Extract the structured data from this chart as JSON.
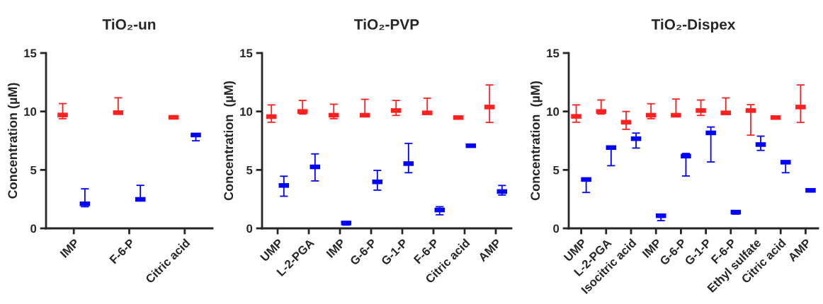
{
  "chart_data": [
    {
      "type": "scatter",
      "title": "TiO₂-un",
      "ylabel": "Concentration (µM)",
      "ylim": [
        0,
        15
      ],
      "yticks": [
        0,
        5,
        10,
        15
      ],
      "grid": false,
      "legend": false,
      "categories": [
        null,
        null,
        "IMP",
        null,
        null,
        null,
        null,
        "F-6-P",
        null,
        null,
        null,
        null,
        "Citric acid",
        null,
        null
      ],
      "series": [
        {
          "color": "#ff2020",
          "values": [
            null,
            9.7,
            null,
            null,
            null,
            null,
            9.9,
            null,
            null,
            null,
            null,
            9.5,
            null,
            null,
            null
          ],
          "errors": [
            null,
            [
              9.38,
              10.67
            ],
            null,
            null,
            null,
            null,
            [
              9.78,
              11.17
            ],
            null,
            null,
            null,
            null,
            [
              9.45,
              9.55
            ],
            null,
            null,
            null
          ]
        },
        {
          "color": "#0000ff",
          "values": [
            null,
            null,
            null,
            2.1,
            null,
            null,
            null,
            null,
            2.48,
            null,
            null,
            null,
            null,
            7.99,
            null
          ],
          "errors": [
            null,
            null,
            null,
            [
              1.85,
              3.38
            ],
            null,
            null,
            null,
            null,
            [
              2.48,
              3.68
            ],
            null,
            null,
            null,
            null,
            [
              7.49,
              7.99
            ],
            null
          ]
        }
      ]
    },
    {
      "type": "scatter",
      "title": "TiO₂-PVP",
      "ylabel": "Concentration  (µM)",
      "ylim": [
        0,
        15
      ],
      "yticks": [
        0,
        5,
        10,
        15
      ],
      "grid": false,
      "legend": false,
      "categories": [
        null,
        null,
        "UMP",
        null,
        null,
        null,
        null,
        "L-2-PGA",
        null,
        null,
        null,
        null,
        "IMP",
        null,
        null,
        null,
        null,
        "G-6-P",
        null,
        null,
        null,
        null,
        "G-1-P",
        null,
        null,
        null,
        null,
        "F-6-P",
        null,
        null,
        null,
        null,
        "Citric acid",
        null,
        null,
        null,
        null,
        "AMP",
        null,
        null
      ],
      "series": [
        {
          "color": "#ff2020",
          "values": [
            null,
            9.56,
            null,
            null,
            null,
            null,
            10.0,
            null,
            null,
            null,
            null,
            9.68,
            null,
            null,
            null,
            null,
            9.68,
            null,
            null,
            null,
            null,
            10.08,
            null,
            null,
            null,
            null,
            9.88,
            null,
            null,
            null,
            null,
            9.48,
            null,
            null,
            null,
            null,
            10.38,
            null,
            null,
            null
          ],
          "errors": [
            null,
            [
              9.08,
              10.56
            ],
            null,
            null,
            null,
            null,
            [
              9.78,
              10.94
            ],
            null,
            null,
            null,
            null,
            [
              9.38,
              10.62
            ],
            null,
            null,
            null,
            null,
            [
              9.68,
              11.04
            ],
            null,
            null,
            null,
            null,
            [
              9.66,
              10.94
            ],
            null,
            null,
            null,
            null,
            [
              9.8,
              11.14
            ],
            null,
            null,
            null,
            null,
            [
              9.42,
              9.54
            ],
            null,
            null,
            null,
            null,
            [
              9.06,
              12.27
            ],
            null,
            null,
            null
          ]
        },
        {
          "color": "#0000ff",
          "values": [
            null,
            null,
            null,
            3.67,
            null,
            null,
            null,
            null,
            5.26,
            null,
            null,
            null,
            null,
            0.46,
            null,
            null,
            null,
            null,
            3.98,
            null,
            null,
            null,
            null,
            5.54,
            null,
            null,
            null,
            null,
            1.57,
            null,
            null,
            null,
            null,
            7.07,
            null,
            null,
            null,
            null,
            3.15,
            null
          ],
          "errors": [
            null,
            null,
            null,
            [
              2.75,
              4.46
            ],
            null,
            null,
            null,
            null,
            [
              4.06,
              6.37
            ],
            null,
            null,
            null,
            null,
            [
              0.28,
              0.56
            ],
            null,
            null,
            null,
            null,
            [
              3.27,
              4.96
            ],
            null,
            null,
            null,
            null,
            [
              4.76,
              7.27
            ],
            null,
            null,
            null,
            null,
            [
              1.16,
              1.85
            ],
            null,
            null,
            null,
            null,
            [
              7.01,
              7.11
            ],
            null,
            null,
            null,
            null,
            [
              2.85,
              3.67
            ],
            null
          ]
        }
      ]
    },
    {
      "type": "scatter",
      "title": "TiO₂-Dispex",
      "ylabel": "Concentration  (µM)",
      "ylim": [
        0,
        15
      ],
      "yticks": [
        0,
        5,
        10,
        15
      ],
      "grid": false,
      "legend": false,
      "categories": [
        null,
        null,
        "UMP",
        null,
        null,
        null,
        null,
        "L-2-PGA",
        null,
        null,
        null,
        null,
        "Isocitric acid",
        null,
        null,
        null,
        null,
        "IMP",
        null,
        null,
        null,
        null,
        "G-6-P",
        null,
        null,
        null,
        null,
        "G-1-P",
        null,
        null,
        null,
        null,
        "F-6-P",
        null,
        null,
        null,
        null,
        "Ethyl sulfate",
        null,
        null,
        null,
        null,
        "Citric acid",
        null,
        null,
        null,
        null,
        "AMP",
        null,
        null
      ],
      "series": [
        {
          "color": "#ff2020",
          "values": [
            null,
            9.58,
            null,
            null,
            null,
            null,
            10.0,
            null,
            null,
            null,
            null,
            9.08,
            null,
            null,
            null,
            null,
            9.68,
            null,
            null,
            null,
            null,
            9.68,
            null,
            null,
            null,
            null,
            10.08,
            null,
            null,
            null,
            null,
            9.88,
            null,
            null,
            null,
            null,
            10.08,
            null,
            null,
            null,
            null,
            9.48,
            null,
            null,
            null,
            null,
            10.38,
            null,
            null,
            null
          ],
          "errors": [
            null,
            [
              9.08,
              10.56
            ],
            null,
            null,
            null,
            null,
            [
              9.78,
              10.98
            ],
            null,
            null,
            null,
            null,
            [
              8.47,
              10.0
            ],
            null,
            null,
            null,
            null,
            [
              9.38,
              10.66
            ],
            null,
            null,
            null,
            null,
            [
              9.68,
              11.06
            ],
            null,
            null,
            null,
            null,
            [
              9.66,
              10.98
            ],
            null,
            null,
            null,
            null,
            [
              9.8,
              11.16
            ],
            null,
            null,
            null,
            null,
            [
              7.97,
              10.58
            ],
            null,
            null,
            null,
            null,
            [
              9.42,
              9.52
            ],
            null,
            null,
            null,
            null,
            [
              9.06,
              12.27
            ],
            null,
            null,
            null
          ]
        },
        {
          "color": "#0000ff",
          "values": [
            null,
            null,
            null,
            4.18,
            null,
            null,
            null,
            null,
            6.91,
            null,
            null,
            null,
            null,
            7.67,
            null,
            null,
            null,
            null,
            1.08,
            null,
            null,
            null,
            null,
            6.18,
            null,
            null,
            null,
            null,
            8.17,
            null,
            null,
            null,
            null,
            1.39,
            null,
            null,
            null,
            null,
            7.17,
            null,
            null,
            null,
            null,
            5.66,
            null,
            null,
            null,
            null,
            3.25,
            null
          ],
          "errors": [
            null,
            null,
            null,
            [
              3.07,
              4.18
            ],
            null,
            null,
            null,
            null,
            [
              5.36,
              6.97
            ],
            null,
            null,
            null,
            null,
            [
              6.87,
              8.15
            ],
            null,
            null,
            null,
            null,
            [
              0.66,
              1.16
            ],
            null,
            null,
            null,
            null,
            [
              4.48,
              6.41
            ],
            null,
            null,
            null,
            null,
            [
              5.68,
              8.67
            ],
            null,
            null,
            null,
            null,
            [
              1.22,
              1.45
            ],
            null,
            null,
            null,
            null,
            [
              6.67,
              7.89
            ],
            null,
            null,
            null,
            null,
            [
              4.76,
              5.66
            ],
            null,
            null,
            null,
            null,
            [
              3.19,
              3.29
            ],
            null
          ]
        }
      ]
    }
  ]
}
